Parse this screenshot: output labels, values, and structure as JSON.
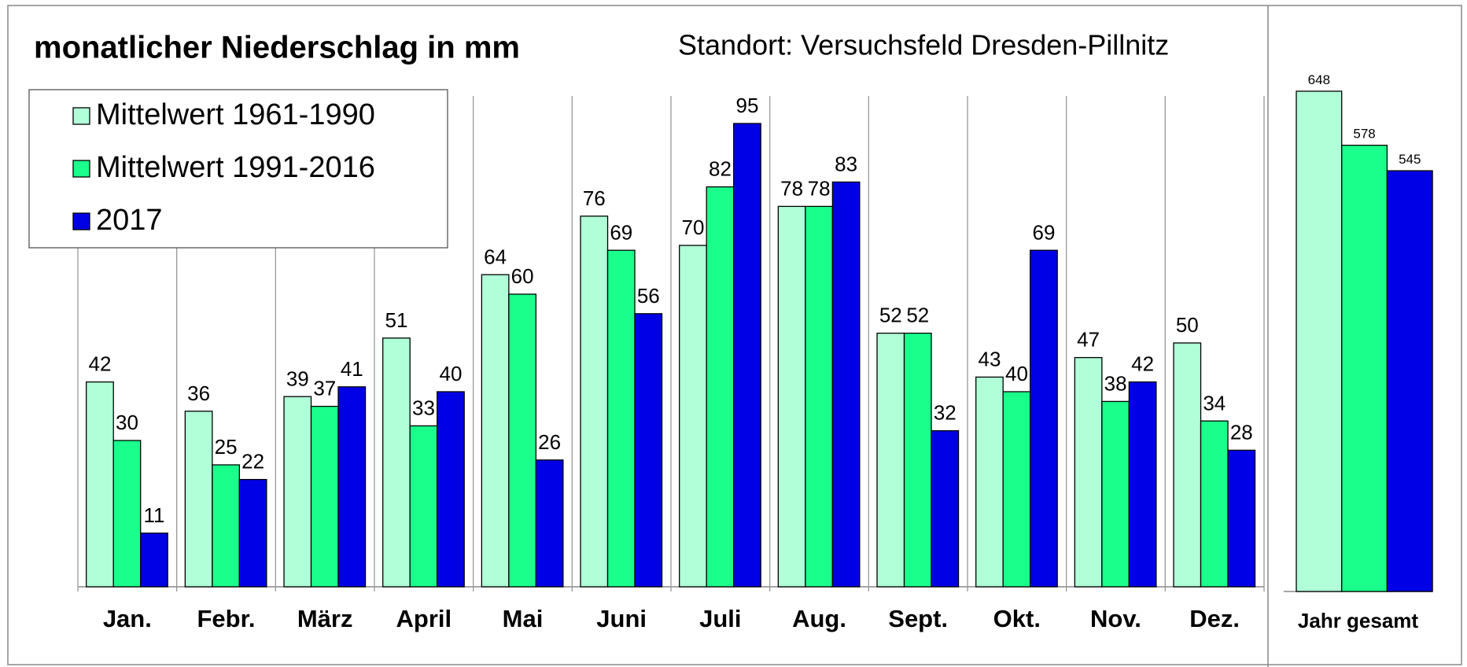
{
  "chart_data": [
    {
      "type": "bar",
      "title": "monatlicher Niederschlag in mm",
      "subtitle": "Standort: Versuchsfeld Dresden-Pillnitz",
      "categories": [
        "Jan.",
        "Febr.",
        "März",
        "April",
        "Mai",
        "Juni",
        "Juli",
        "Aug.",
        "Sept.",
        "Okt.",
        "Nov.",
        "Dez."
      ],
      "series": [
        {
          "name": "Mittelwert 1961-1990",
          "color": "#b0ffd8",
          "values": [
            42,
            36,
            39,
            51,
            64,
            76,
            70,
            78,
            52,
            43,
            47,
            50
          ]
        },
        {
          "name": "Mittelwert 1991-2016",
          "color": "#1aff8c",
          "values": [
            30,
            25,
            37,
            33,
            60,
            69,
            82,
            78,
            52,
            40,
            38,
            34
          ]
        },
        {
          "name": "2017",
          "color": "#0000e6",
          "values": [
            11,
            22,
            41,
            40,
            26,
            56,
            95,
            83,
            32,
            69,
            42,
            28
          ]
        }
      ],
      "ylim": [
        0,
        100
      ],
      "legend": "top-left"
    },
    {
      "type": "bar",
      "categories": [
        "Jahr gesamt"
      ],
      "series": [
        {
          "color": "#b0ffd8",
          "values": [
            648
          ]
        },
        {
          "color": "#1aff8c",
          "values": [
            578
          ]
        },
        {
          "color": "#0000e6",
          "values": [
            545
          ]
        }
      ],
      "ylim": [
        0,
        650
      ]
    }
  ]
}
